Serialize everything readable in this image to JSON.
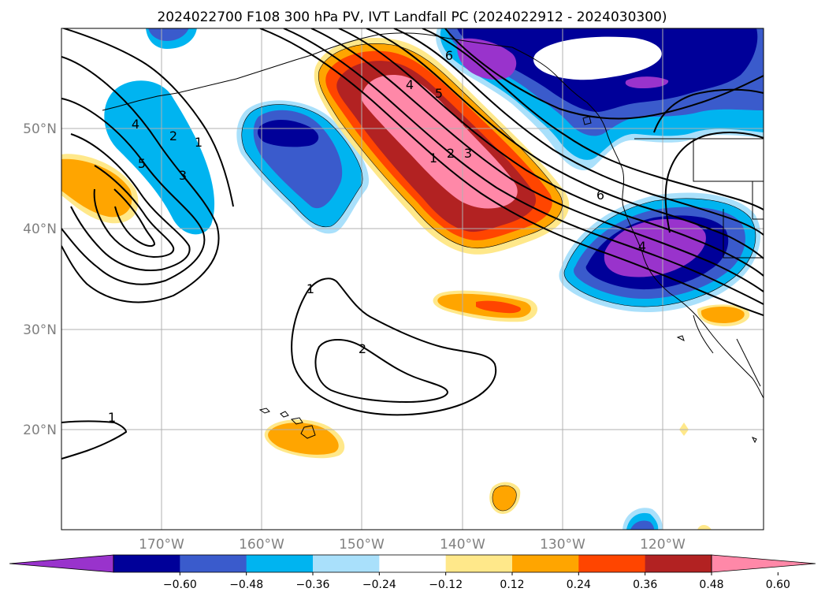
{
  "title": "2024022700 F108 300 hPa PV, IVT Landfall PC (2024022912 - 2024030300)",
  "map": {
    "lat_labels": [
      "50°N",
      "40°N",
      "30°N",
      "20°N"
    ],
    "lon_labels": [
      "170°W",
      "160°W",
      "150°W",
      "140°W",
      "130°W",
      "120°W"
    ],
    "gridlines": true
  },
  "chart_data": {
    "type": "heatmap",
    "title": "2024022700 F108 300 hPa PV, IVT Landfall PC (2024022912 - 2024030300)",
    "xlabel": "",
    "ylabel": "",
    "x_ticks": [
      "170°W",
      "160°W",
      "150°W",
      "140°W",
      "130°W",
      "120°W"
    ],
    "y_ticks": [
      "50°N",
      "40°N",
      "30°N",
      "20°N"
    ],
    "lon_range": [
      -180,
      -110
    ],
    "lat_range": [
      10,
      60
    ],
    "grid": true,
    "colorbar": {
      "levels": [
        -0.6,
        -0.48,
        -0.36,
        -0.24,
        -0.12,
        0.12,
        0.24,
        0.36,
        0.48,
        0.6
      ],
      "tick_labels": [
        "−0.60",
        "−0.48",
        "−0.36",
        "−0.24",
        "−0.12",
        "0.12",
        "0.24",
        "0.36",
        "0.48",
        "0.60"
      ],
      "colors": [
        "#9933cc",
        "#000099",
        "#3a5bcc",
        "#00b4f0",
        "#a9e0fb",
        "#ffffff",
        "#ffe88a",
        "#ffa500",
        "#ff4500",
        "#b22222",
        "#ff88a8"
      ],
      "extend": "both"
    },
    "contour_labels": [
      "4",
      "5",
      "2",
      "1",
      "3",
      "4",
      "5",
      "1",
      "2",
      "3",
      "6",
      "6",
      "4",
      "1",
      "2",
      "1"
    ]
  },
  "colors": {
    "land_outline": "#000000",
    "contour": "#000000",
    "grid": "#b0b0b0"
  }
}
